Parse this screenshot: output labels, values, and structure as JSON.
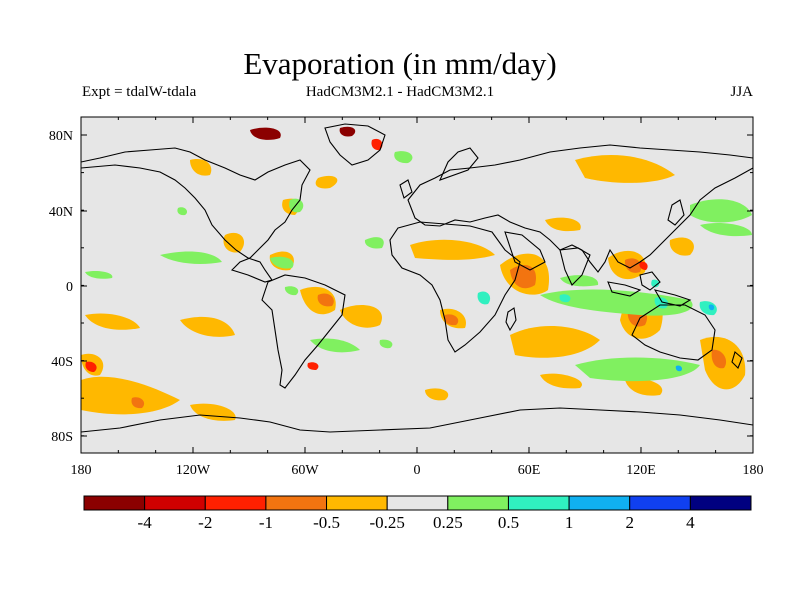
{
  "header": {
    "title": "Evaporation (in mm/day)",
    "left_label": "Expt = tdalW-tdala",
    "center_label": "HadCM3M2.1 - HadCM3M2.1",
    "right_label": "JJA"
  },
  "map": {
    "lat_ticks": [
      "80N",
      "40N",
      "0",
      "40S",
      "80S"
    ],
    "lon_ticks": [
      "180",
      "120W",
      "60W",
      "0",
      "60E",
      "120E",
      "180"
    ],
    "background_color": "#e6e6e6",
    "coastline_color": "#000000"
  },
  "colorbar": {
    "labels": [
      "-4",
      "-2",
      "-1",
      "-0.5",
      "-0.25",
      "0.25",
      "0.5",
      "1",
      "2",
      "4"
    ],
    "colors": [
      "#8b0000",
      "#d00000",
      "#ff2000",
      "#f27410",
      "#ffb800",
      "#e6e6e6",
      "#80f060",
      "#30f0c0",
      "#10b0f0",
      "#1040f0",
      "#000080"
    ]
  }
}
